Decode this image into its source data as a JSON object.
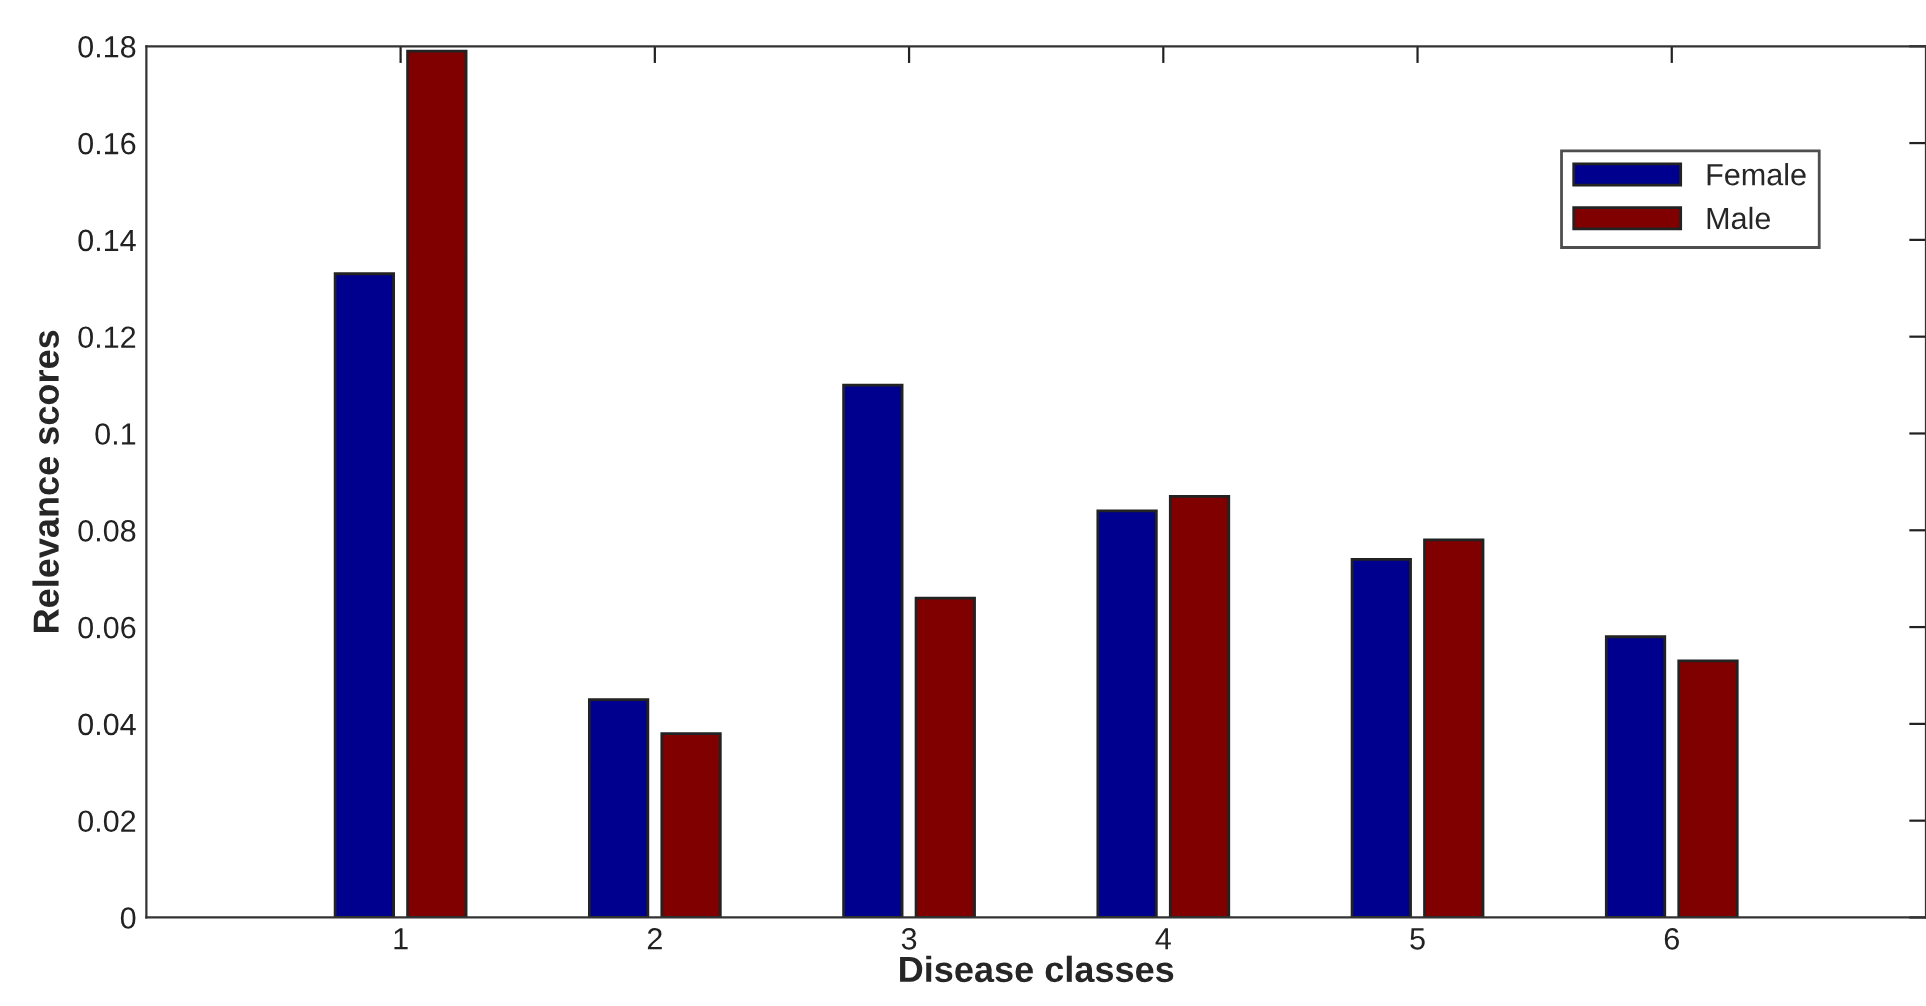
{
  "chart_data": {
    "type": "bar",
    "xlabel": "Disease classes",
    "ylabel": "Relevance scores",
    "categories": [
      "1",
      "2",
      "3",
      "4",
      "5",
      "6"
    ],
    "series": [
      {
        "name": "Female",
        "color": "#00008f",
        "values": [
          0.133,
          0.045,
          0.11,
          0.084,
          0.074,
          0.058
        ]
      },
      {
        "name": "Male",
        "color": "#800000",
        "values": [
          0.179,
          0.038,
          0.066,
          0.087,
          0.078,
          0.053
        ]
      }
    ],
    "ylim": [
      0,
      0.18
    ],
    "yticks": [
      0,
      0.02,
      0.04,
      0.06,
      0.08,
      {
        "value": 0.1,
        "label": "0.1"
      },
      0.12,
      0.14,
      0.16,
      0.18
    ],
    "legend": "top right",
    "grid": false
  }
}
